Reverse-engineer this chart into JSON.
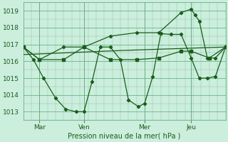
{
  "bg_color": "#cceedd",
  "grid_color": "#55aa77",
  "line_color": "#1a5c1a",
  "ylabel": "Pression niveau de la mer( hPa )",
  "ylim": [
    1012.5,
    1019.5
  ],
  "yticks": [
    1013,
    1014,
    1015,
    1016,
    1017,
    1018,
    1019
  ],
  "xlim": [
    0,
    100
  ],
  "xtick_labels": [
    "Mar",
    "Ven",
    "Mer",
    "Jeu"
  ],
  "xtick_positions": [
    8,
    30,
    60,
    83
  ],
  "vline_positions": [
    8,
    30,
    60,
    83
  ],
  "series1_x": [
    0,
    5,
    10,
    16,
    21,
    26,
    30,
    34,
    38,
    43,
    48,
    52,
    57,
    60,
    64,
    68,
    73,
    78,
    83,
    87,
    91,
    95,
    100
  ],
  "series1_y": [
    1016.85,
    1016.1,
    1015.0,
    1013.8,
    1013.15,
    1013.0,
    1013.0,
    1014.8,
    1016.85,
    1016.85,
    1016.1,
    1013.7,
    1013.3,
    1013.5,
    1015.1,
    1017.65,
    1017.6,
    1017.6,
    1016.2,
    1015.0,
    1015.0,
    1015.1,
    1016.85
  ],
  "series2_x": [
    0,
    8,
    20,
    30,
    43,
    56,
    67,
    78,
    83,
    92,
    100
  ],
  "series2_y": [
    1016.85,
    1016.1,
    1016.1,
    1016.85,
    1016.1,
    1016.1,
    1016.2,
    1016.6,
    1016.6,
    1016.2,
    1016.85
  ],
  "series3_x": [
    0,
    50,
    100
  ],
  "series3_y": [
    1016.4,
    1016.65,
    1016.85
  ],
  "series4_x": [
    0,
    8,
    20,
    30,
    43,
    56,
    67,
    78,
    83,
    85,
    87,
    91,
    95,
    100
  ],
  "series4_y": [
    1016.85,
    1016.1,
    1016.85,
    1016.85,
    1017.5,
    1017.7,
    1017.7,
    1018.9,
    1019.1,
    1018.75,
    1018.4,
    1016.2,
    1016.2,
    1016.85
  ]
}
